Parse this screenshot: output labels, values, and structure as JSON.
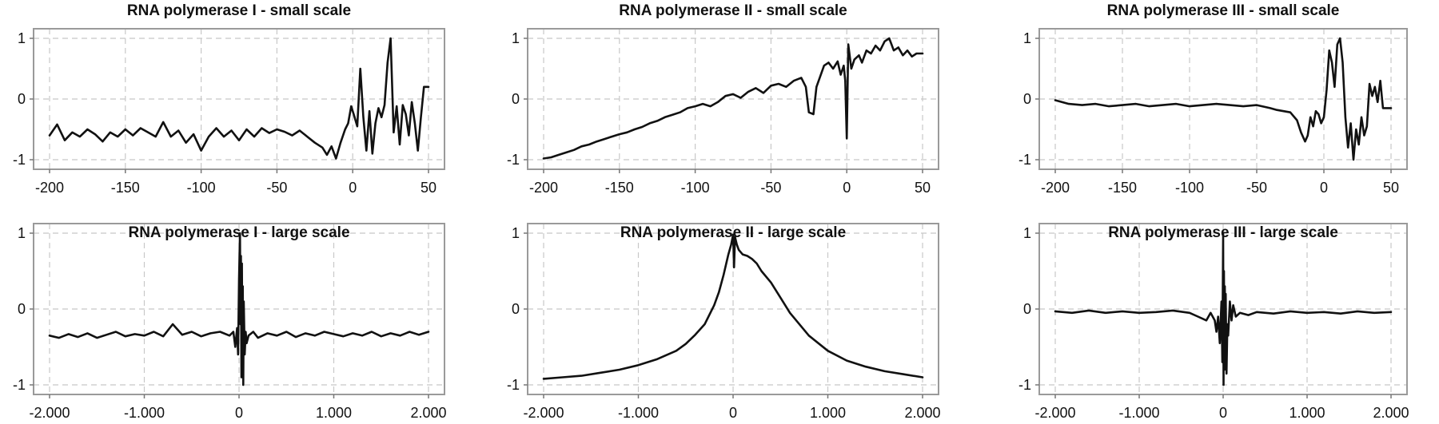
{
  "chart_data": [
    {
      "type": "line",
      "title": "RNA polymerase I - small scale",
      "xlim": [
        -200,
        50
      ],
      "ylim": [
        -1,
        1
      ],
      "xticks": [
        -200,
        -150,
        -100,
        -50,
        0,
        50
      ],
      "xtick_labels": [
        "-200",
        "-150",
        "-100",
        "-50",
        "0",
        "50"
      ],
      "yticks": [
        -1,
        0,
        1
      ],
      "ytick_labels": [
        "-1",
        "0",
        "1"
      ],
      "grid": true,
      "series": [
        {
          "x": [
            -200,
            -195,
            -190,
            -185,
            -180,
            -175,
            -170,
            -165,
            -160,
            -155,
            -150,
            -145,
            -140,
            -135,
            -130,
            -125,
            -120,
            -115,
            -110,
            -105,
            -100,
            -95,
            -90,
            -85,
            -80,
            -75,
            -70,
            -65,
            -60,
            -55,
            -50,
            -45,
            -40,
            -35,
            -30,
            -25,
            -20,
            -17,
            -14,
            -11,
            -8,
            -5,
            -3,
            -1,
            1,
            3,
            5,
            7,
            9,
            11,
            13,
            15,
            17,
            19,
            21,
            23,
            25,
            27,
            29,
            31,
            33,
            35,
            37,
            39,
            41,
            43,
            45,
            47,
            50
          ],
          "y": [
            -0.6,
            -0.42,
            -0.68,
            -0.55,
            -0.62,
            -0.5,
            -0.58,
            -0.7,
            -0.55,
            -0.62,
            -0.5,
            -0.6,
            -0.48,
            -0.55,
            -0.62,
            -0.38,
            -0.62,
            -0.52,
            -0.72,
            -0.58,
            -0.85,
            -0.62,
            -0.48,
            -0.62,
            -0.52,
            -0.68,
            -0.5,
            -0.62,
            -0.48,
            -0.56,
            -0.5,
            -0.54,
            -0.6,
            -0.52,
            -0.62,
            -0.72,
            -0.8,
            -0.92,
            -0.78,
            -0.98,
            -0.72,
            -0.5,
            -0.4,
            -0.12,
            -0.28,
            -0.45,
            0.5,
            -0.3,
            -0.85,
            -0.2,
            -0.9,
            -0.4,
            -0.15,
            -0.3,
            -0.1,
            0.6,
            1.0,
            -0.55,
            -0.12,
            -0.75,
            -0.1,
            -0.25,
            -0.6,
            -0.05,
            -0.4,
            -0.85,
            -0.3,
            0.2,
            0.2
          ]
        }
      ]
    },
    {
      "type": "line",
      "title": "RNA polymerase II - small scale",
      "xlim": [
        -200,
        50
      ],
      "ylim": [
        -1,
        1
      ],
      "xticks": [
        -200,
        -150,
        -100,
        -50,
        0,
        50
      ],
      "xtick_labels": [
        "-200",
        "-150",
        "-100",
        "-50",
        "0",
        "50"
      ],
      "yticks": [
        -1,
        0,
        1
      ],
      "ytick_labels": [
        "-1",
        "0",
        "1"
      ],
      "grid": true,
      "series": [
        {
          "x": [
            -200,
            -195,
            -190,
            -185,
            -180,
            -175,
            -170,
            -165,
            -160,
            -155,
            -150,
            -145,
            -140,
            -135,
            -130,
            -125,
            -120,
            -115,
            -110,
            -105,
            -100,
            -95,
            -90,
            -85,
            -80,
            -75,
            -70,
            -65,
            -60,
            -55,
            -50,
            -45,
            -40,
            -35,
            -30,
            -27,
            -25,
            -22,
            -20,
            -15,
            -12,
            -9,
            -6,
            -4,
            -2,
            -1,
            0,
            1,
            3,
            5,
            8,
            10,
            13,
            16,
            19,
            22,
            25,
            28,
            31,
            34,
            37,
            40,
            43,
            46,
            50
          ],
          "y": [
            -0.98,
            -0.96,
            -0.92,
            -0.88,
            -0.84,
            -0.78,
            -0.75,
            -0.7,
            -0.66,
            -0.62,
            -0.58,
            -0.55,
            -0.5,
            -0.46,
            -0.4,
            -0.36,
            -0.3,
            -0.26,
            -0.22,
            -0.15,
            -0.12,
            -0.08,
            -0.12,
            -0.05,
            0.05,
            0.08,
            0.02,
            0.12,
            0.18,
            0.1,
            0.22,
            0.25,
            0.2,
            0.3,
            0.35,
            0.2,
            -0.22,
            -0.25,
            0.2,
            0.55,
            0.6,
            0.5,
            0.62,
            0.4,
            0.55,
            0.3,
            -0.65,
            0.9,
            0.5,
            0.65,
            0.72,
            0.6,
            0.8,
            0.75,
            0.88,
            0.8,
            0.95,
            1.0,
            0.8,
            0.85,
            0.72,
            0.8,
            0.7,
            0.75,
            0.75
          ]
        }
      ]
    },
    {
      "type": "line",
      "title": "RNA polymerase III - small scale",
      "xlim": [
        -200,
        50
      ],
      "ylim": [
        -1,
        1
      ],
      "xticks": [
        -200,
        -150,
        -100,
        -50,
        0,
        50
      ],
      "xtick_labels": [
        "-200",
        "-150",
        "-100",
        "-50",
        "0",
        "50"
      ],
      "yticks": [
        -1,
        0,
        1
      ],
      "ytick_labels": [
        "-1",
        "0",
        "1"
      ],
      "grid": true,
      "series": [
        {
          "x": [
            -200,
            -190,
            -180,
            -170,
            -160,
            -150,
            -140,
            -130,
            -120,
            -110,
            -100,
            -90,
            -80,
            -70,
            -60,
            -50,
            -40,
            -35,
            -30,
            -25,
            -20,
            -17,
            -14,
            -12,
            -10,
            -8,
            -6,
            -4,
            -2,
            0,
            2,
            4,
            6,
            8,
            10,
            12,
            14,
            16,
            18,
            20,
            22,
            24,
            26,
            28,
            30,
            32,
            34,
            36,
            38,
            40,
            42,
            44,
            46,
            50
          ],
          "y": [
            -0.02,
            -0.08,
            -0.1,
            -0.08,
            -0.12,
            -0.1,
            -0.08,
            -0.12,
            -0.1,
            -0.08,
            -0.12,
            -0.1,
            -0.08,
            -0.1,
            -0.12,
            -0.1,
            -0.15,
            -0.18,
            -0.2,
            -0.22,
            -0.35,
            -0.55,
            -0.7,
            -0.6,
            -0.3,
            -0.45,
            -0.2,
            -0.25,
            -0.4,
            -0.3,
            0.15,
            0.8,
            0.6,
            0.2,
            0.9,
            1.0,
            0.6,
            -0.3,
            -0.8,
            -0.4,
            -1.0,
            -0.5,
            -0.75,
            -0.3,
            -0.6,
            -0.45,
            0.25,
            0.05,
            0.2,
            -0.05,
            0.3,
            -0.15,
            -0.15,
            -0.15
          ]
        }
      ]
    },
    {
      "type": "line",
      "title": "RNA polymerase I - large scale",
      "xlim": [
        -2000,
        2000
      ],
      "ylim": [
        -1,
        1
      ],
      "xticks": [
        -2000,
        -1000,
        0,
        1000,
        2000
      ],
      "xtick_labels": [
        "-2.000",
        "-1.000",
        "0",
        "1.000",
        "2.000"
      ],
      "yticks": [
        -1,
        0,
        1
      ],
      "ytick_labels": [
        "-1",
        "0",
        "1"
      ],
      "grid": true,
      "series": [
        {
          "x": [
            -2000,
            -1900,
            -1800,
            -1700,
            -1600,
            -1500,
            -1400,
            -1300,
            -1200,
            -1100,
            -1000,
            -900,
            -800,
            -700,
            -600,
            -500,
            -400,
            -300,
            -200,
            -100,
            -60,
            -40,
            -20,
            -10,
            0,
            10,
            15,
            20,
            25,
            30,
            35,
            40,
            45,
            50,
            60,
            70,
            80,
            100,
            150,
            200,
            300,
            400,
            500,
            600,
            700,
            800,
            900,
            1000,
            1100,
            1200,
            1300,
            1400,
            1500,
            1600,
            1700,
            1800,
            1900,
            2000
          ],
          "y": [
            -0.35,
            -0.38,
            -0.33,
            -0.37,
            -0.32,
            -0.38,
            -0.34,
            -0.3,
            -0.36,
            -0.33,
            -0.35,
            -0.3,
            -0.36,
            -0.2,
            -0.34,
            -0.3,
            -0.36,
            -0.32,
            -0.3,
            -0.35,
            -0.3,
            -0.5,
            -0.25,
            -0.6,
            0.4,
            1.0,
            -0.2,
            0.7,
            -0.9,
            0.6,
            -0.5,
            0.3,
            -1.0,
            0.1,
            -0.6,
            -0.3,
            -0.45,
            -0.35,
            -0.3,
            -0.38,
            -0.32,
            -0.35,
            -0.3,
            -0.37,
            -0.32,
            -0.35,
            -0.3,
            -0.33,
            -0.36,
            -0.32,
            -0.35,
            -0.3,
            -0.36,
            -0.32,
            -0.35,
            -0.3,
            -0.34,
            -0.3
          ]
        }
      ]
    },
    {
      "type": "line",
      "title": "RNA polymerase II - large scale",
      "xlim": [
        -2000,
        2000
      ],
      "ylim": [
        -1,
        1
      ],
      "xticks": [
        -2000,
        -1000,
        0,
        1000,
        2000
      ],
      "xtick_labels": [
        "-2.000",
        "-1.000",
        "0",
        "1.000",
        "2.000"
      ],
      "yticks": [
        -1,
        0,
        1
      ],
      "ytick_labels": [
        "-1",
        "0",
        "1"
      ],
      "grid": true,
      "series": [
        {
          "x": [
            -2000,
            -1800,
            -1600,
            -1400,
            -1200,
            -1000,
            -800,
            -600,
            -500,
            -400,
            -300,
            -200,
            -150,
            -100,
            -50,
            -20,
            0,
            10,
            20,
            40,
            60,
            100,
            150,
            200,
            250,
            300,
            400,
            500,
            600,
            800,
            1000,
            1200,
            1400,
            1600,
            1800,
            2000
          ],
          "y": [
            -0.92,
            -0.9,
            -0.88,
            -0.84,
            -0.8,
            -0.74,
            -0.66,
            -0.55,
            -0.46,
            -0.34,
            -0.2,
            0.05,
            0.22,
            0.45,
            0.72,
            0.85,
            0.98,
            0.55,
            0.95,
            0.85,
            0.78,
            0.72,
            0.7,
            0.66,
            0.6,
            0.5,
            0.35,
            0.15,
            -0.05,
            -0.35,
            -0.55,
            -0.68,
            -0.76,
            -0.82,
            -0.86,
            -0.9
          ]
        }
      ]
    },
    {
      "type": "line",
      "title": "RNA polymerase III - large scale",
      "xlim": [
        -2000,
        2000
      ],
      "ylim": [
        -1,
        1
      ],
      "xticks": [
        -2000,
        -1000,
        0,
        1000,
        2000
      ],
      "xtick_labels": [
        "-2.000",
        "-1.000",
        "0",
        "1.000",
        "2.000"
      ],
      "yticks": [
        -1,
        0,
        1
      ],
      "ytick_labels": [
        "-1",
        "0",
        "1"
      ],
      "grid": true,
      "series": [
        {
          "x": [
            -2000,
            -1800,
            -1600,
            -1400,
            -1200,
            -1000,
            -800,
            -600,
            -400,
            -300,
            -200,
            -150,
            -100,
            -80,
            -60,
            -40,
            -20,
            -10,
            0,
            5,
            10,
            15,
            20,
            25,
            30,
            40,
            50,
            60,
            80,
            100,
            120,
            150,
            200,
            300,
            400,
            600,
            800,
            1000,
            1200,
            1400,
            1600,
            1800,
            2000
          ],
          "y": [
            -0.03,
            -0.05,
            -0.02,
            -0.05,
            -0.03,
            -0.05,
            -0.04,
            -0.02,
            -0.05,
            -0.1,
            -0.15,
            -0.05,
            -0.15,
            -0.3,
            -0.1,
            -0.45,
            0.1,
            -0.7,
            1.0,
            -1.0,
            0.5,
            -0.8,
            0.3,
            -0.55,
            0.2,
            -0.85,
            -0.2,
            -0.35,
            0.1,
            -0.15,
            0.05,
            -0.1,
            -0.05,
            -0.08,
            -0.04,
            -0.06,
            -0.03,
            -0.05,
            -0.04,
            -0.06,
            -0.03,
            -0.05,
            -0.04
          ]
        }
      ]
    }
  ]
}
